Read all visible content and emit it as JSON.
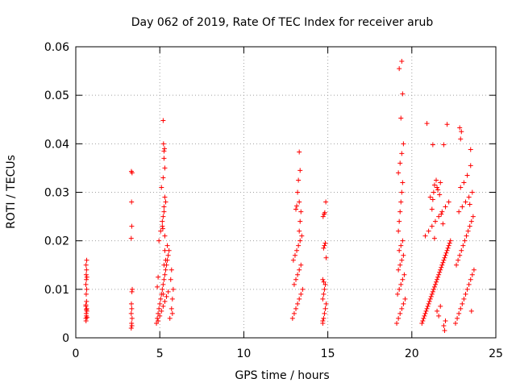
{
  "chart_data": {
    "type": "scatter",
    "title": "Day 062 of 2019, Rate Of TEC Index for receiver arub",
    "xlabel": "GPS time / hours",
    "ylabel": "ROTI / TECUs",
    "xlim": [
      0,
      25
    ],
    "ylim": [
      0,
      0.06
    ],
    "xticks": [
      0,
      5,
      10,
      15,
      20,
      25
    ],
    "xtick_labels": [
      "0",
      "5",
      "10",
      "15",
      "20",
      "25"
    ],
    "yticks": [
      0,
      0.01,
      0.02,
      0.03,
      0.04,
      0.05,
      0.06
    ],
    "ytick_labels": [
      "0",
      "0.01",
      "0.02",
      "0.03",
      "0.04",
      "0.05",
      "0.06"
    ],
    "grid": true,
    "marker": "+",
    "color": "#ff0000",
    "series": [
      {
        "name": "ROTI",
        "x": [
          0.6,
          0.62,
          0.65,
          0.6,
          0.63,
          0.66,
          0.61,
          0.64,
          0.62,
          0.65,
          0.6,
          0.63,
          0.66,
          0.62,
          0.64,
          0.61,
          0.65,
          0.63,
          0.67,
          0.6,
          3.3,
          3.32,
          3.35,
          3.3,
          3.33,
          3.31,
          3.34,
          3.36,
          3.3,
          3.33,
          3.32,
          3.35,
          3.31,
          3.34,
          4.8,
          4.85,
          4.9,
          4.95,
          5.0,
          5.05,
          5.1,
          5.15,
          5.2,
          5.25,
          5.3,
          5.35,
          5.4,
          5.45,
          5.5,
          5.55,
          4.9,
          5.0,
          5.1,
          5.2,
          5.3,
          5.4,
          5.5,
          4.95,
          5.05,
          5.15,
          5.25,
          5.35,
          5.45,
          5.6,
          5.7,
          5.75,
          5.8,
          5.65,
          5.7,
          5.75,
          5.2,
          5.25,
          5.3,
          5.15,
          5.2,
          5.25,
          5.3,
          5.1,
          5.2,
          5.3,
          5.25,
          5.28,
          5.22,
          5.18,
          5.3,
          5.35,
          5.2,
          5.25,
          4.85,
          4.9,
          12.9,
          13.0,
          13.1,
          13.2,
          13.3,
          13.4,
          13.5,
          13.0,
          13.1,
          13.2,
          13.3,
          13.4,
          12.95,
          13.05,
          13.15,
          13.25,
          13.35,
          13.45,
          13.3,
          13.35,
          13.4,
          13.3,
          13.2,
          13.25,
          13.35,
          13.3,
          13.15,
          13.1,
          14.7,
          14.75,
          14.8,
          14.85,
          14.9,
          14.7,
          14.75,
          14.8,
          14.85,
          14.7,
          14.75,
          14.8,
          14.85,
          14.9,
          14.72,
          14.78,
          14.82,
          14.88,
          14.7,
          14.76,
          19.1,
          19.2,
          19.3,
          19.4,
          19.5,
          19.6,
          19.15,
          19.25,
          19.35,
          19.45,
          19.55,
          19.2,
          19.3,
          19.4,
          19.5,
          19.25,
          19.35,
          19.45,
          19.2,
          19.25,
          19.3,
          19.35,
          19.4,
          19.45,
          19.2,
          19.3,
          19.4,
          19.5,
          19.35,
          19.45,
          19.25,
          19.4,
          20.6,
          20.7,
          20.8,
          20.9,
          21.0,
          21.1,
          21.2,
          21.3,
          21.4,
          21.5,
          21.6,
          21.7,
          21.8,
          21.9,
          22.0,
          22.1,
          22.2,
          22.3,
          20.65,
          20.75,
          20.85,
          20.95,
          21.05,
          21.15,
          21.25,
          21.35,
          21.45,
          21.55,
          21.65,
          21.75,
          21.85,
          21.95,
          22.05,
          22.15,
          22.25,
          20.8,
          21.0,
          21.2,
          21.4,
          21.6,
          21.8,
          22.0,
          22.2,
          21.1,
          21.3,
          21.5,
          21.7,
          21.9,
          22.1,
          20.9,
          21.25,
          21.35,
          21.95,
          21.9,
          21.5,
          21.6,
          21.7,
          22.0,
          21.2,
          21.25,
          21.35,
          21.45,
          21.55,
          21.65,
          21.75,
          21.85,
          22.6,
          22.7,
          22.8,
          22.9,
          23.0,
          23.1,
          23.2,
          23.3,
          23.4,
          23.5,
          23.6,
          23.7,
          22.65,
          22.75,
          22.85,
          22.95,
          23.05,
          23.15,
          23.25,
          23.35,
          23.45,
          23.55,
          23.65,
          22.8,
          23.0,
          23.2,
          23.4,
          23.6,
          22.9,
          23.1,
          23.3,
          23.5,
          22.85,
          22.9,
          22.95,
          23.5,
          23.45,
          23.55
        ],
        "y": [
          0.004,
          0.005,
          0.006,
          0.0065,
          0.0045,
          0.0055,
          0.0035,
          0.0075,
          0.009,
          0.01,
          0.011,
          0.012,
          0.0125,
          0.013,
          0.014,
          0.015,
          0.016,
          0.0058,
          0.0042,
          0.0068,
          0.002,
          0.003,
          0.004,
          0.005,
          0.006,
          0.007,
          0.0095,
          0.01,
          0.0205,
          0.023,
          0.028,
          0.034,
          0.0343,
          0.0025,
          0.003,
          0.004,
          0.005,
          0.006,
          0.007,
          0.008,
          0.009,
          0.01,
          0.011,
          0.012,
          0.013,
          0.014,
          0.015,
          0.016,
          0.017,
          0.018,
          0.0035,
          0.0045,
          0.0055,
          0.0065,
          0.0075,
          0.0085,
          0.0095,
          0.02,
          0.022,
          0.024,
          0.026,
          0.028,
          0.019,
          0.004,
          0.006,
          0.008,
          0.01,
          0.012,
          0.014,
          0.005,
          0.009,
          0.015,
          0.021,
          0.023,
          0.025,
          0.027,
          0.029,
          0.031,
          0.033,
          0.035,
          0.037,
          0.039,
          0.04,
          0.0225,
          0.018,
          0.016,
          0.0448,
          0.0385,
          0.0105,
          0.0125,
          0.004,
          0.005,
          0.006,
          0.007,
          0.008,
          0.009,
          0.01,
          0.011,
          0.012,
          0.013,
          0.014,
          0.015,
          0.016,
          0.017,
          0.018,
          0.019,
          0.02,
          0.021,
          0.022,
          0.024,
          0.026,
          0.028,
          0.03,
          0.0325,
          0.0345,
          0.0383,
          0.0272,
          0.0265,
          0.003,
          0.004,
          0.005,
          0.006,
          0.007,
          0.008,
          0.009,
          0.01,
          0.011,
          0.012,
          0.0185,
          0.019,
          0.0195,
          0.0165,
          0.025,
          0.0255,
          0.0258,
          0.028,
          0.0035,
          0.0115,
          0.003,
          0.004,
          0.005,
          0.006,
          0.007,
          0.008,
          0.009,
          0.01,
          0.011,
          0.012,
          0.013,
          0.014,
          0.015,
          0.016,
          0.017,
          0.018,
          0.019,
          0.02,
          0.022,
          0.024,
          0.026,
          0.028,
          0.03,
          0.032,
          0.034,
          0.036,
          0.038,
          0.04,
          0.0453,
          0.0503,
          0.0555,
          0.057,
          0.003,
          0.004,
          0.005,
          0.006,
          0.007,
          0.008,
          0.009,
          0.01,
          0.011,
          0.012,
          0.013,
          0.014,
          0.015,
          0.016,
          0.017,
          0.018,
          0.019,
          0.02,
          0.0035,
          0.0045,
          0.0055,
          0.0065,
          0.0075,
          0.0085,
          0.0095,
          0.0105,
          0.0115,
          0.0125,
          0.0135,
          0.0145,
          0.0155,
          0.0165,
          0.0175,
          0.0185,
          0.0195,
          0.021,
          0.022,
          0.023,
          0.024,
          0.025,
          0.026,
          0.027,
          0.028,
          0.029,
          0.03,
          0.031,
          0.032,
          0.0398,
          0.044,
          0.0442,
          0.0398,
          0.0205,
          0.0015,
          0.0025,
          0.0055,
          0.0045,
          0.0065,
          0.0035,
          0.0265,
          0.0285,
          0.0315,
          0.0325,
          0.0305,
          0.0295,
          0.0255,
          0.0235,
          0.003,
          0.004,
          0.005,
          0.006,
          0.007,
          0.008,
          0.009,
          0.01,
          0.011,
          0.012,
          0.013,
          0.014,
          0.015,
          0.016,
          0.017,
          0.018,
          0.019,
          0.02,
          0.021,
          0.022,
          0.023,
          0.024,
          0.025,
          0.026,
          0.027,
          0.028,
          0.029,
          0.03,
          0.031,
          0.032,
          0.0335,
          0.0355,
          0.0433,
          0.041,
          0.0425,
          0.0388,
          0.0275,
          0.0055
        ]
      }
    ]
  }
}
